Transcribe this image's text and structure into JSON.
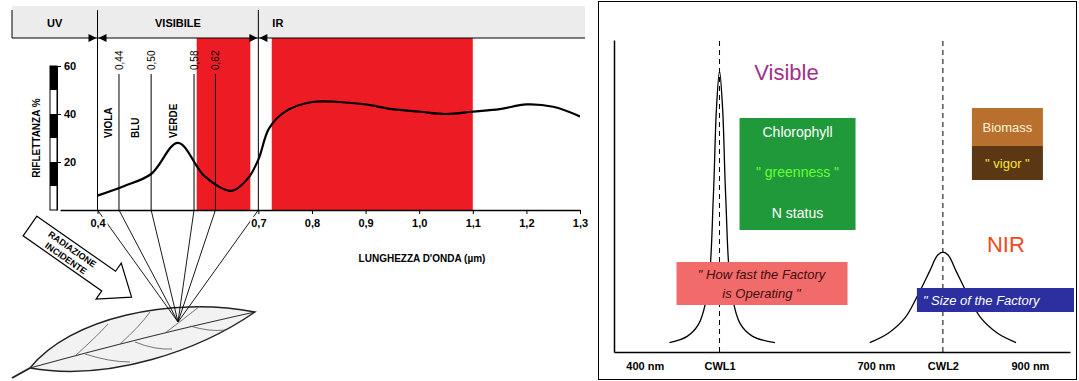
{
  "chart_data": [
    {
      "type": "line",
      "regions": [
        {
          "label": "UV",
          "end": 0.4
        },
        {
          "label": "VISIBILE",
          "start": 0.4,
          "end": 0.7
        },
        {
          "label": "IR",
          "start": 0.7
        }
      ],
      "bands": [
        {
          "start": 0.585,
          "end": 0.685,
          "color": "#ed1c24"
        },
        {
          "start": 0.725,
          "end": 1.1,
          "color": "#ed1c24"
        }
      ],
      "marked_wavelengths": [
        {
          "value": 0.44,
          "label": "0,44"
        },
        {
          "value": 0.5,
          "label": "0,50"
        },
        {
          "value": 0.58,
          "label": "0,58"
        },
        {
          "value": 0.62,
          "label": "0,62"
        }
      ],
      "color_names": [
        "VIOLA",
        "BLU",
        "VERDE"
      ],
      "x_label": "LUNGHEZZA D'ONDA (µm)",
      "y_label": "RIFLETTANZA %",
      "annotation": [
        "RADIAZIONE",
        "INCIDENTE"
      ],
      "x": [
        0.4,
        0.45,
        0.5,
        0.55,
        0.6,
        0.65,
        0.68,
        0.7,
        0.72,
        0.75,
        0.8,
        0.85,
        0.9,
        0.95,
        1.0,
        1.05,
        1.1,
        1.15,
        1.2,
        1.25,
        1.3
      ],
      "series": [
        {
          "values": [
            6,
            10,
            15,
            28,
            14,
            8,
            13,
            21,
            34,
            41,
            45,
            45,
            44,
            42,
            41,
            40,
            41,
            42,
            44,
            43,
            39
          ],
          "color": "#000000"
        }
      ],
      "xlim": [
        0.33,
        1.3
      ],
      "xticks": [
        {
          "value": 0.4,
          "label": "0,4"
        },
        {
          "value": 0.7,
          "label": "0,7"
        },
        {
          "value": 0.8,
          "label": "0,8"
        },
        {
          "value": 0.9,
          "label": "0,9"
        },
        {
          "value": 1.0,
          "label": "1,0"
        },
        {
          "value": 1.1,
          "label": "1,1"
        },
        {
          "value": 1.2,
          "label": "1,2"
        },
        {
          "value": 1.3,
          "label": "1,3"
        }
      ],
      "ylim": [
        0,
        60
      ],
      "yticks": [
        20,
        40,
        60
      ]
    },
    {
      "type": "line",
      "series": [
        {
          "x": [
            432,
            455,
            470,
            482,
            489,
            493,
            497,
            501,
            505,
            512,
            524,
            540,
            569
          ],
          "values": [
            3,
            5,
            9,
            20,
            50,
            78,
            90,
            78,
            50,
            20,
            9,
            5,
            3
          ],
          "color": "#000000"
        },
        {
          "x": [
            692,
            716,
            738,
            754,
            770,
            780,
            787,
            794,
            804,
            820,
            836,
            858,
            882
          ],
          "values": [
            3,
            6,
            11,
            18,
            26,
            31,
            32,
            31,
            26,
            18,
            11,
            6,
            3
          ],
          "color": "#000000"
        }
      ],
      "vlines": [
        497,
        787
      ],
      "xlim": [
        360,
        952
      ],
      "xticks": [
        {
          "value": 400,
          "label": "400 nm"
        },
        {
          "value": 497,
          "label": "CWL1"
        },
        {
          "value": 700,
          "label": "700 nm"
        },
        {
          "value": 787,
          "label": "CWL2"
        },
        {
          "value": 900,
          "label": "900 nm"
        }
      ],
      "ylim": [
        0,
        100
      ],
      "tick_labels": "x",
      "annotations": {
        "visible": {
          "text": "Visible",
          "color": "#a3308c"
        },
        "chlorophyll_box": {
          "color": "#20993b",
          "lines": [
            {
              "text": "Chlorophyll",
              "color": "#ffffff"
            },
            {
              "text": "\" greenness \"",
              "color": "#66ff33"
            },
            {
              "text": "N status",
              "color": "#ffffff"
            }
          ]
        },
        "factory_speed": {
          "color": "#f26b6b",
          "lines": [
            "\" How fast the Factory",
            "is Operating \""
          ]
        },
        "biomass_box": {
          "colors": [
            "#b9702e",
            "#5c3713"
          ],
          "lines": [
            {
              "text": "Biomass",
              "color": "#fff3d6"
            },
            {
              "text": "\" vigor \"",
              "color": "#f7e63c"
            }
          ]
        },
        "nir": {
          "text": "NIR",
          "color": "#f04b1d"
        },
        "factory_size": {
          "color": "#2b2fa0",
          "text": "\" Size of the Factory"
        }
      }
    }
  ]
}
